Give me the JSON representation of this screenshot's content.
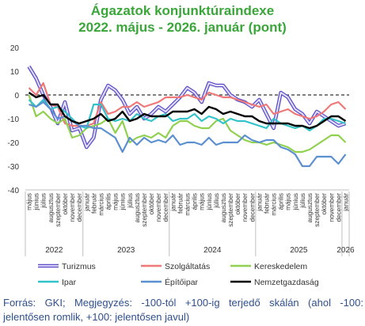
{
  "title_line1": "Ágazatok konjunktúraindexe",
  "title_line2": "2022. május - 2026. január (pont)",
  "source_note": "Forrás: GKI; Megjegyzés: -100-tól +100-ig terjedő skálán (ahol -100: jelentősen romlik, +100: jelentősen javul)",
  "chart_data": {
    "type": "line",
    "ylim": [
      -40,
      20
    ],
    "yticks": [
      20,
      10,
      0,
      -10,
      -20,
      -30,
      -40
    ],
    "reference_line": 0,
    "x": [
      "május",
      "június",
      "július",
      "augusztus",
      "szeptember",
      "október",
      "november",
      "december",
      "január",
      "február",
      "március",
      "április",
      "május",
      "június",
      "július",
      "augusztus",
      "szeptember",
      "október",
      "november",
      "december",
      "január",
      "február",
      "március",
      "április",
      "május",
      "június",
      "július",
      "augusztus",
      "szeptember",
      "október",
      "november",
      "december",
      "január",
      "február",
      "március",
      "április",
      "május",
      "június",
      "július",
      "augusztus",
      "szeptember",
      "október",
      "november",
      "december",
      "január"
    ],
    "year_groups": [
      {
        "label": "2022",
        "start": 0,
        "end": 7
      },
      {
        "label": "2023",
        "start": 8,
        "end": 19
      },
      {
        "label": "2024",
        "start": 20,
        "end": 31
      },
      {
        "label": "2025",
        "start": 32,
        "end": 43
      },
      {
        "label": "2026",
        "start": 44,
        "end": 44
      }
    ],
    "legend_position": "bottom",
    "series": [
      {
        "name": "Turizmus",
        "color": "#9b8ee6",
        "outline": "#5b4fc8",
        "width": 3.2,
        "double": true,
        "values": [
          12,
          7,
          0,
          -5,
          -12,
          -3,
          -15,
          -14,
          -22,
          -18,
          -2,
          4,
          2,
          -2,
          -8,
          -5,
          -10,
          -8,
          -5,
          -7,
          -4,
          -1,
          3,
          1,
          -3,
          5,
          4,
          4,
          0,
          -2,
          -3,
          -5,
          -2,
          -8,
          -14,
          1,
          -1,
          -6,
          -8,
          -12,
          -7,
          -9,
          -11,
          -13,
          -12
        ]
      },
      {
        "name": "Szolgáltatás",
        "color": "#ef7777",
        "width": 2.2,
        "values": [
          3,
          0,
          5,
          -4,
          -5,
          -12,
          -13,
          -13,
          -13,
          -12,
          -3,
          -8,
          -7,
          -5,
          -5,
          -3,
          -5,
          -4,
          -3,
          -1,
          -1,
          -1,
          0,
          -1,
          -2,
          1,
          0,
          -1,
          -1,
          -2,
          -3,
          -4,
          -5,
          -4,
          -8,
          -7,
          -6,
          -8,
          -9,
          -10,
          -9,
          -7,
          -4,
          -3,
          -6
        ]
      },
      {
        "name": "Kereskedelem",
        "color": "#8fd14f",
        "width": 2.2,
        "values": [
          0,
          -9,
          -7,
          -10,
          -12,
          -10,
          -18,
          -17,
          -14,
          -13,
          -12,
          -10,
          -16,
          -11,
          -20,
          -18,
          -17,
          -18,
          -16,
          -18,
          -13,
          -11,
          -11,
          -13,
          -14,
          -14,
          -11,
          -10,
          -15,
          -17,
          -19,
          -20,
          -20,
          -21,
          -20,
          -21,
          -22,
          -24,
          -24,
          -23,
          -21,
          -19,
          -17,
          -17,
          -20
        ]
      },
      {
        "name": "Ipar",
        "color": "#33c2c9",
        "width": 2.2,
        "values": [
          -2,
          -5,
          -2,
          -6,
          -5,
          -7,
          -10,
          -13,
          -14,
          -4,
          -4,
          -10,
          -11,
          -10,
          -11,
          -8,
          -10,
          -11,
          -9,
          -8,
          -11,
          -10,
          -10,
          -8,
          -11,
          -9,
          -10,
          -12,
          -10,
          -11,
          -11,
          -12,
          -13,
          -14,
          -10,
          -12,
          -13,
          -14,
          -13,
          -15,
          -13,
          -10,
          -10,
          -11,
          -12
        ]
      },
      {
        "name": "Építőipar",
        "color": "#5b8fcf",
        "width": 2.2,
        "values": [
          -4,
          -5,
          -3,
          -6,
          -10,
          -9,
          -11,
          -13,
          -13,
          -14,
          -14,
          -16,
          -18,
          -24,
          -18,
          -21,
          -18,
          -20,
          -19,
          -20,
          -17,
          -21,
          -20,
          -20,
          -21,
          -18,
          -21,
          -20,
          -20,
          -20,
          -17,
          -19,
          -20,
          -19,
          -19,
          -22,
          -23,
          -25,
          -30,
          -30,
          -26,
          -26,
          -26,
          -29,
          -25
        ]
      },
      {
        "name": "Nemzetgazdaság",
        "color": "#000000",
        "width": 2.4,
        "values": [
          1,
          -1,
          0,
          -4,
          -4,
          -9,
          -11,
          -12,
          -11,
          -10,
          -8,
          -11,
          -10,
          -7,
          -11,
          -10,
          -8,
          -9,
          -9,
          -9,
          -7,
          -7,
          -7,
          -6,
          -8,
          -5,
          -6,
          -8,
          -7,
          -8,
          -9,
          -9,
          -11,
          -12,
          -12,
          -12,
          -12,
          -13,
          -13,
          -14,
          -13,
          -11,
          -9,
          -9,
          -11
        ]
      }
    ]
  }
}
